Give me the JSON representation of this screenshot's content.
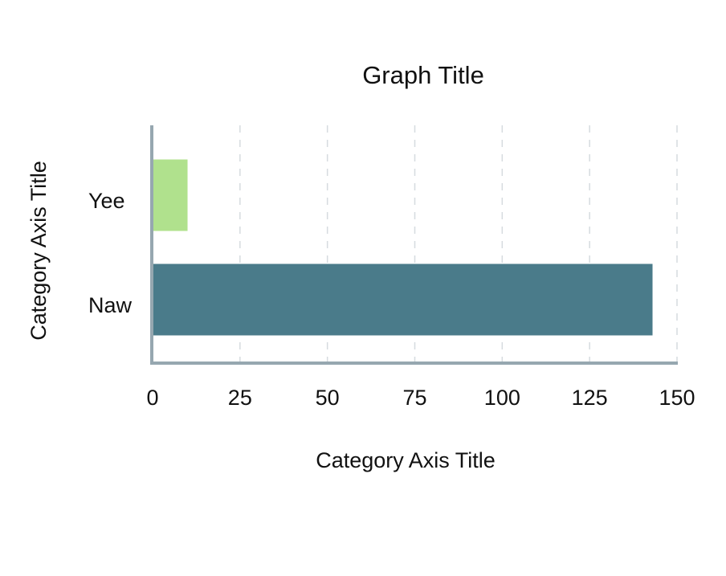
{
  "chart_data": {
    "type": "bar",
    "orientation": "horizontal",
    "title": "Graph Title",
    "xlabel": "Category Axis Title",
    "ylabel": "Category Axis Title",
    "categories": [
      "Yee",
      "Naw"
    ],
    "values": [
      10,
      143
    ],
    "bar_colors": [
      "#b0e18d",
      "#4a7b8a"
    ],
    "xlim": [
      0,
      150
    ],
    "xticks": [
      0,
      25,
      50,
      75,
      100,
      125,
      150
    ],
    "x_tick_labels": [
      "0",
      "25",
      "50",
      "75",
      "100",
      "125",
      "150"
    ],
    "grid": "vertical dashed",
    "legend": "none"
  },
  "colors": {
    "axis": "#96a7b0",
    "grid": "#d6dbdf",
    "text": "#111111"
  }
}
